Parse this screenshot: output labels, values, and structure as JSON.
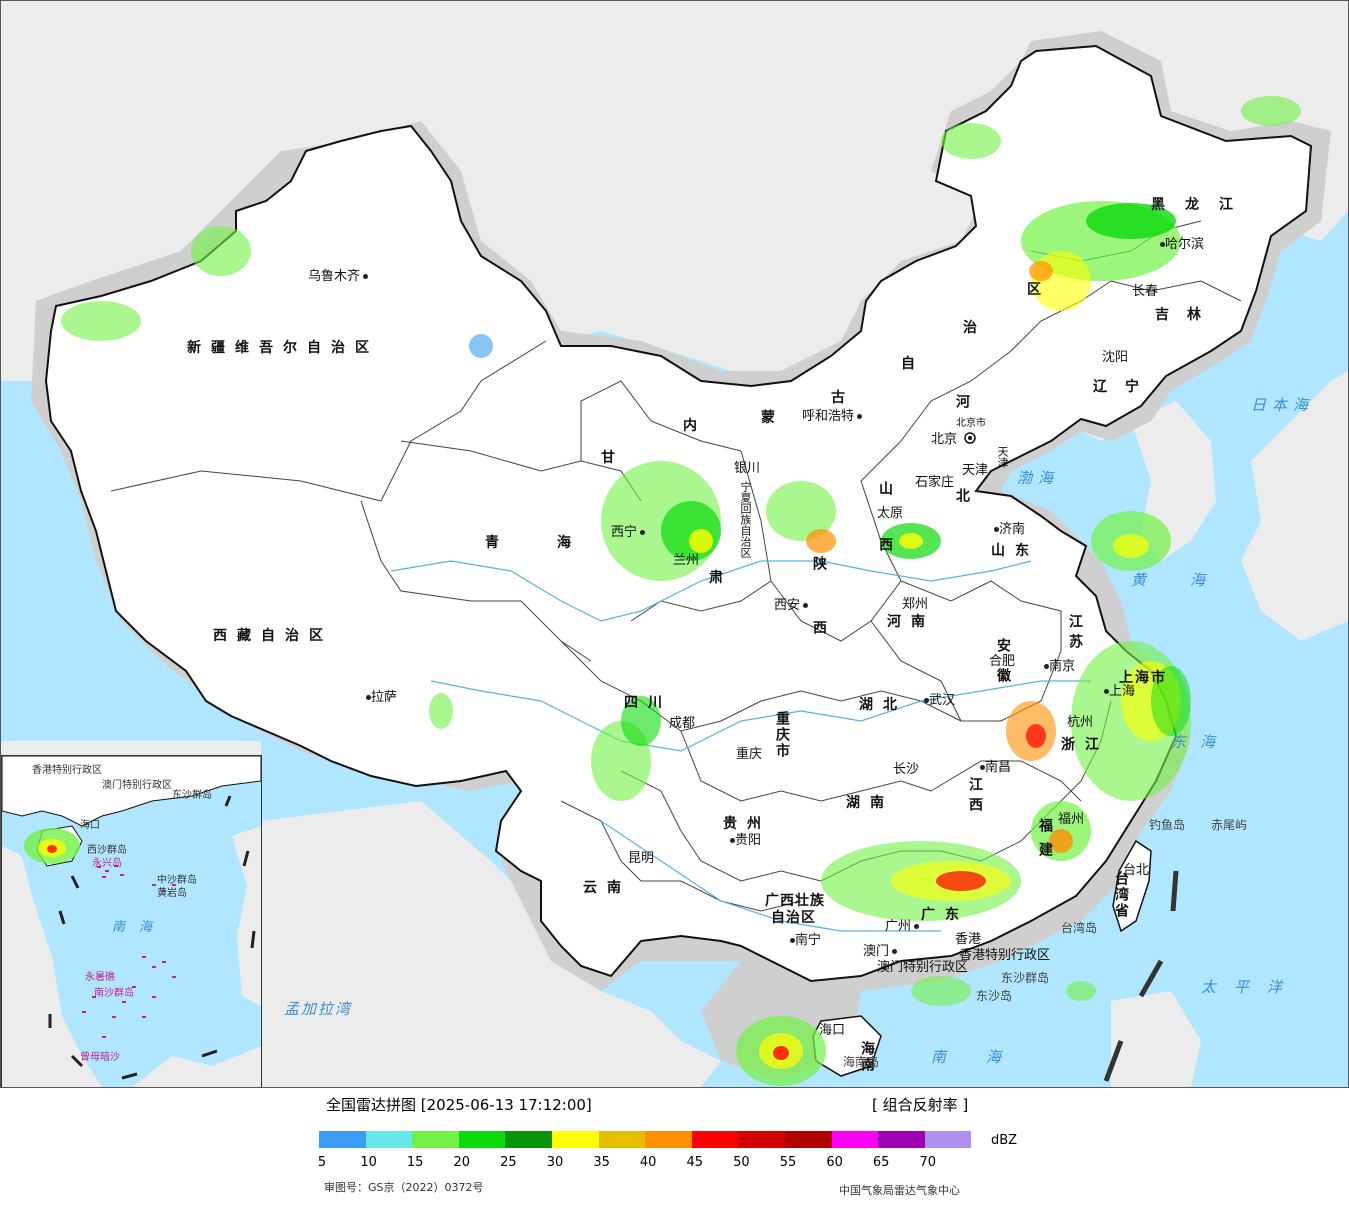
{
  "legend": {
    "title": "全国雷达拼图 [2025-06-13 17:12:00]",
    "product": "[ 组合反射率 ]",
    "unit": "dBZ",
    "colors": [
      "#3a9cf2",
      "#66e8e6",
      "#72f245",
      "#0cda0c",
      "#079507",
      "#ffff00",
      "#e5c000",
      "#ff9000",
      "#ff0000",
      "#d20000",
      "#b10000",
      "#ff00f0",
      "#9d00b4",
      "#ae90f0"
    ],
    "ticks": [
      "5",
      "10",
      "15",
      "20",
      "25",
      "30",
      "35",
      "40",
      "45",
      "50",
      "55",
      "60",
      "65",
      "70"
    ]
  },
  "footer": {
    "review_number": "审图号：GS京（2022）0372号",
    "agency": "中国气象局雷达气象中心"
  },
  "map": {
    "colors": {
      "land": "#ececec",
      "china": "#ffffff",
      "sea": "#b0e6ff",
      "halo": "#c8c8c8",
      "border": "#111111"
    },
    "provinces": [
      {
        "id": "xinjiang",
        "label": "新疆维吾尔自治区"
      },
      {
        "id": "xizang",
        "label": "西藏自治区"
      },
      {
        "id": "qinghai1",
        "label": "青"
      },
      {
        "id": "qinghai2",
        "label": "海"
      },
      {
        "id": "gansu",
        "label": "甘"
      },
      {
        "id": "sichuan",
        "label": "四川"
      },
      {
        "id": "yunnan",
        "label": "云南"
      },
      {
        "id": "guizhou",
        "label": "贵州"
      },
      {
        "id": "guangxi",
        "label": "广西壮族"
      },
      {
        "id": "guangxi2",
        "label": "自治区"
      },
      {
        "id": "guangdong",
        "label": "广东"
      },
      {
        "id": "hunan",
        "label": "湖南"
      },
      {
        "id": "hubei",
        "label": "湖北"
      },
      {
        "id": "henan",
        "label": "河南"
      },
      {
        "id": "shandong",
        "label": "山东"
      },
      {
        "id": "jiangxi",
        "label": "江西"
      },
      {
        "id": "fujian",
        "label": "福建"
      },
      {
        "id": "zhejiang",
        "label": "浙江"
      },
      {
        "id": "anhui",
        "label": "安徽"
      },
      {
        "id": "jiangsu",
        "label": "江苏"
      },
      {
        "id": "shanghai",
        "label": "上海市"
      },
      {
        "id": "chongqing",
        "label": "重庆市"
      },
      {
        "id": "shaanxi",
        "label": "陕西"
      },
      {
        "id": "shanxi",
        "label": "山西"
      },
      {
        "id": "hebei",
        "label": "河北"
      },
      {
        "id": "nm1",
        "label": "内"
      },
      {
        "id": "nm2",
        "label": "蒙"
      },
      {
        "id": "nm3",
        "label": "古"
      },
      {
        "id": "nm4",
        "label": "自"
      },
      {
        "id": "nm5",
        "label": "治"
      },
      {
        "id": "nm6",
        "label": "区"
      },
      {
        "id": "liaoning",
        "label": "辽宁"
      },
      {
        "id": "jilin",
        "label": "吉林"
      },
      {
        "id": "heilongjiang",
        "label": "黑龙江"
      },
      {
        "id": "hainan",
        "label": "海南"
      },
      {
        "id": "taiwan",
        "label": "台湾省"
      },
      {
        "id": "ningxia",
        "label": "宁夏回族自治区"
      },
      {
        "id": "tianjin",
        "label": "天津"
      },
      {
        "id": "beijing",
        "label": "北京市"
      },
      {
        "id": "hk",
        "label": "香港特别行政区"
      },
      {
        "id": "macau",
        "label": "澳门特别行政区"
      },
      {
        "id": "gansu2",
        "label": "肃"
      }
    ],
    "cities": [
      {
        "id": "urumqi",
        "label": "乌鲁木齐"
      },
      {
        "id": "lhasa",
        "label": "拉萨"
      },
      {
        "id": "xining",
        "label": "西宁"
      },
      {
        "id": "lanzhou",
        "label": "兰州"
      },
      {
        "id": "yinchuan",
        "label": "银川"
      },
      {
        "id": "hohhot",
        "label": "呼和浩特"
      },
      {
        "id": "beijing_c",
        "label": "北京"
      },
      {
        "id": "tianjin_c",
        "label": "天津"
      },
      {
        "id": "shijiazhuang",
        "label": "石家庄"
      },
      {
        "id": "taiyuan",
        "label": "太原"
      },
      {
        "id": "jinan",
        "label": "济南"
      },
      {
        "id": "zhengzhou",
        "label": "郑州"
      },
      {
        "id": "xian",
        "label": "西安"
      },
      {
        "id": "chengdu",
        "label": "成都"
      },
      {
        "id": "chongqing_c",
        "label": "重庆"
      },
      {
        "id": "wuhan",
        "label": "武汉"
      },
      {
        "id": "hefei",
        "label": "合肥"
      },
      {
        "id": "nanjing",
        "label": "南京"
      },
      {
        "id": "shanghai_c",
        "label": "上海"
      },
      {
        "id": "hangzhou",
        "label": "杭州"
      },
      {
        "id": "nanchang",
        "label": "南昌"
      },
      {
        "id": "changsha",
        "label": "长沙"
      },
      {
        "id": "guiyang",
        "label": "贵阳"
      },
      {
        "id": "kunming",
        "label": "昆明"
      },
      {
        "id": "nanning",
        "label": "南宁"
      },
      {
        "id": "guangzhou",
        "label": "广州"
      },
      {
        "id": "macau_c",
        "label": "澳门"
      },
      {
        "id": "hk_c",
        "label": "香港"
      },
      {
        "id": "fuzhou",
        "label": "福州"
      },
      {
        "id": "taipei",
        "label": "台北"
      },
      {
        "id": "haikou",
        "label": "海口"
      },
      {
        "id": "shenyang",
        "label": "沈阳"
      },
      {
        "id": "changchun",
        "label": "长春"
      },
      {
        "id": "harbin",
        "label": "哈尔滨"
      }
    ],
    "seas": [
      {
        "id": "japan_sea",
        "label": "日本海"
      },
      {
        "id": "bohai",
        "label": "渤海"
      },
      {
        "id": "yellow_sea",
        "label": "黄海"
      },
      {
        "id": "east_sea",
        "label": "东海"
      },
      {
        "id": "pacific",
        "label": "太平洋"
      },
      {
        "id": "south_sea",
        "label": "南海"
      },
      {
        "id": "bengal",
        "label": "孟加拉湾"
      }
    ],
    "islands": [
      {
        "id": "diaoyu",
        "label": "钓鱼岛"
      },
      {
        "id": "chiwei",
        "label": "赤尾屿"
      },
      {
        "id": "dongsha_q",
        "label": "东沙群岛"
      },
      {
        "id": "dongsha_d",
        "label": "东沙岛"
      },
      {
        "id": "hainan_d",
        "label": "海南岛"
      },
      {
        "id": "taiwan_d",
        "label": "台湾岛"
      }
    ],
    "inset": {
      "labels": [
        {
          "id": "i_hk",
          "label": "香港特别行政区"
        },
        {
          "id": "i_macau",
          "label": "澳门特别行政区"
        },
        {
          "id": "i_haikou",
          "label": "海口"
        },
        {
          "id": "i_xisha",
          "label": "西沙群岛"
        },
        {
          "id": "i_yongxing",
          "label": "永兴岛"
        },
        {
          "id": "i_zhongsha",
          "label": "中沙群岛"
        },
        {
          "id": "i_huangyan",
          "label": "黄岩岛"
        },
        {
          "id": "i_nanhai",
          "label": "南海"
        },
        {
          "id": "i_yongshu",
          "label": "永暑礁"
        },
        {
          "id": "i_nansha",
          "label": "南沙群岛"
        },
        {
          "id": "i_zengmu",
          "label": "曾母暗沙"
        },
        {
          "id": "i_dongsha",
          "label": "东沙群岛"
        }
      ]
    }
  }
}
